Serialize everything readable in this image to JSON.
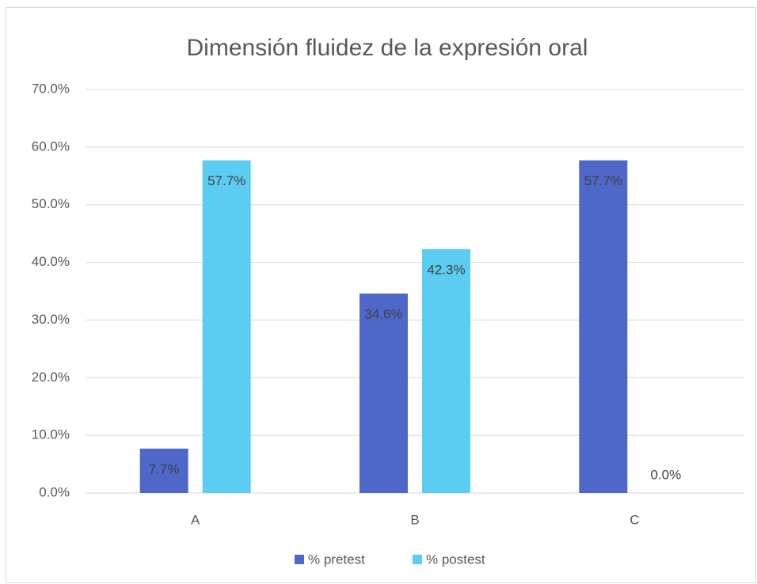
{
  "chart_data": {
    "type": "bar",
    "title": "Dimensión fluidez de la expresión oral",
    "categories": [
      "A",
      "B",
      "C"
    ],
    "series": [
      {
        "name": "% pretest",
        "color": "#4e67c8",
        "values": [
          7.7,
          34.6,
          57.7
        ],
        "value_labels": [
          "7.7%",
          "34.6%",
          "57.7%"
        ]
      },
      {
        "name": "% postest",
        "color": "#5ccdf2",
        "values": [
          57.7,
          42.3,
          0.0
        ],
        "value_labels": [
          "57.7%",
          "42.3%",
          "0.0%"
        ]
      }
    ],
    "ylim": [
      0,
      70
    ],
    "yticks": [
      {
        "value": 0,
        "label": "0.0%"
      },
      {
        "value": 10,
        "label": "10.0%"
      },
      {
        "value": 20,
        "label": "20.0%"
      },
      {
        "value": 30,
        "label": "30.0%"
      },
      {
        "value": 40,
        "label": "40.0%"
      },
      {
        "value": 50,
        "label": "50.0%"
      },
      {
        "value": 60,
        "label": "60.0%"
      },
      {
        "value": 70,
        "label": "70.0%"
      }
    ],
    "grid": true,
    "legend": "bottom"
  }
}
